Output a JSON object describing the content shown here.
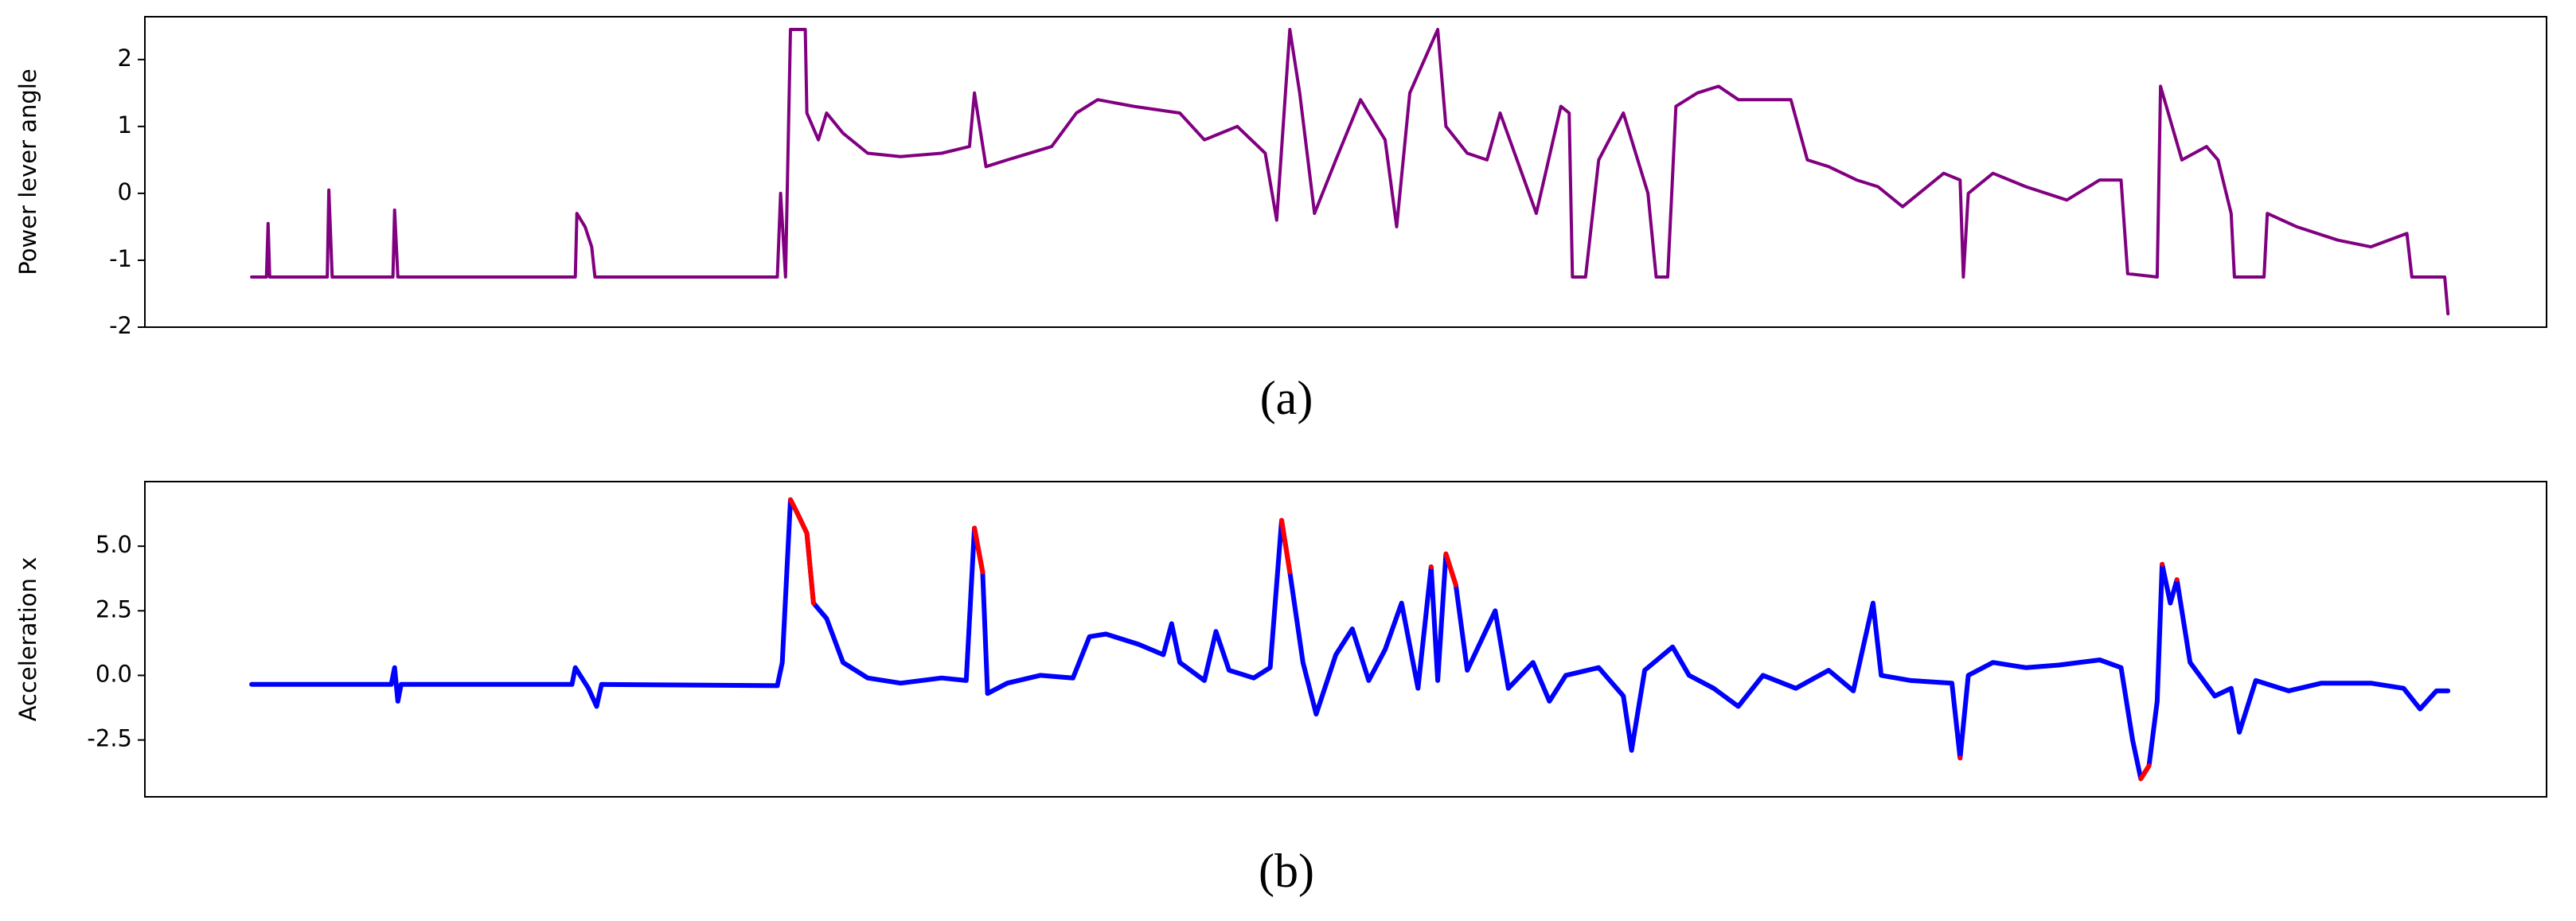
{
  "chart_data": [
    {
      "type": "line",
      "ylabel": "Power lever angle",
      "caption": "(a)",
      "xlim": [
        -65,
        1397
      ],
      "ylim": [
        -2,
        2.64
      ],
      "yticks": [
        -2,
        -1,
        0,
        1,
        2
      ],
      "x": [
        0,
        9,
        10,
        11,
        46,
        47,
        49,
        86,
        87,
        89,
        197,
        198,
        203,
        207,
        209,
        320,
        322,
        325,
        328,
        337,
        338,
        345,
        350,
        360,
        375,
        395,
        420,
        437,
        440,
        447,
        460,
        487,
        502,
        515,
        537,
        565,
        580,
        600,
        617,
        624,
        632,
        638,
        647,
        660,
        675,
        690,
        697,
        705,
        722,
        727,
        740,
        752,
        760,
        782,
        797,
        802,
        804,
        812,
        820,
        835,
        850,
        855,
        862,
        867,
        880,
        893,
        905,
        937,
        947,
        960,
        977,
        990,
        1005,
        1030,
        1040,
        1042,
        1045,
        1060,
        1080,
        1105,
        1125,
        1138,
        1142,
        1160,
        1162,
        1175,
        1190,
        1197,
        1205,
        1207,
        1225,
        1227,
        1245,
        1270,
        1290,
        1312,
        1315,
        1335,
        1337
      ],
      "series": [
        {
          "color": "#800080",
          "values": [
            -1.25,
            -1.25,
            -0.45,
            -1.25,
            -1.25,
            0.05,
            -1.25,
            -1.25,
            -0.25,
            -1.25,
            -1.25,
            -0.3,
            -0.5,
            -0.8,
            -1.25,
            -1.25,
            0,
            -1.25,
            2.45,
            2.45,
            1.2,
            0.8,
            1.2,
            0.9,
            0.6,
            0.55,
            0.6,
            0.7,
            1.5,
            0.4,
            0.5,
            0.7,
            1.2,
            1.4,
            1.3,
            1.2,
            0.8,
            1.0,
            0.6,
            -0.4,
            2.45,
            1.5,
            -0.3,
            0.5,
            1.4,
            0.8,
            -0.5,
            1.5,
            2.45,
            1.0,
            0.6,
            0.5,
            1.2,
            -0.3,
            1.3,
            1.2,
            -1.25,
            -1.25,
            0.5,
            1.2,
            0,
            -1.25,
            -1.25,
            1.3,
            1.5,
            1.6,
            1.4,
            1.4,
            0.5,
            0.4,
            0.2,
            0.1,
            -0.2,
            0.3,
            0.2,
            -1.25,
            0,
            0.3,
            0.1,
            -0.1,
            0.2,
            0.2,
            -1.2,
            -1.25,
            1.6,
            0.5,
            0.7,
            0.5,
            -0.3,
            -1.25,
            -1.25,
            -0.3,
            -0.5,
            -0.7,
            -0.8,
            -0.6,
            -1.25,
            -1.25,
            -1.8
          ]
        }
      ]
    },
    {
      "type": "line",
      "ylabel": "Acceleration x",
      "caption": "(b)",
      "xlim": [
        -65,
        1397
      ],
      "ylim": [
        -4.7,
        7.5
      ],
      "yticks": [
        -2.5,
        {
          "value": 0,
          "label": "0.0"
        },
        2.5,
        {
          "value": 5,
          "label": "5.0"
        }
      ],
      "x": [
        0,
        85,
        87,
        89,
        91,
        195,
        197,
        205,
        210,
        213,
        320,
        323,
        328,
        332,
        338,
        342,
        350,
        360,
        375,
        395,
        420,
        435,
        440,
        445,
        448,
        460,
        480,
        500,
        510,
        520,
        540,
        555,
        560,
        565,
        580,
        587,
        595,
        610,
        620,
        627,
        632,
        640,
        648,
        660,
        670,
        680,
        690,
        700,
        710,
        718,
        722,
        727,
        733,
        740,
        757,
        765,
        780,
        790,
        800,
        820,
        835,
        840,
        848,
        865,
        875,
        890,
        905,
        920,
        940,
        960,
        975,
        987,
        992,
        1010,
        1035,
        1040,
        1045,
        1060,
        1080,
        1100,
        1125,
        1138,
        1145,
        1150,
        1155,
        1160,
        1163,
        1168,
        1172,
        1180,
        1195,
        1205,
        1210,
        1220,
        1240,
        1260,
        1290,
        1310,
        1320,
        1330,
        1337
      ],
      "series": [
        {
          "color": "#0000ff",
          "values": [
            -0.35,
            -0.35,
            0.3,
            -1.0,
            -0.35,
            -0.35,
            0.3,
            -0.5,
            -1.2,
            -0.35,
            -0.4,
            0.5,
            6.8,
            6.3,
            5.5,
            2.8,
            2.2,
            0.5,
            -0.1,
            -0.3,
            -0.1,
            -0.2,
            5.7,
            4.0,
            -0.7,
            -0.3,
            0,
            -0.1,
            1.5,
            1.6,
            1.2,
            0.8,
            2.0,
            0.5,
            -0.2,
            1.7,
            0.2,
            -0.1,
            0.3,
            6.0,
            4.0,
            0.5,
            -1.5,
            0.8,
            1.8,
            -0.2,
            1.0,
            2.8,
            -0.5,
            4.2,
            -0.2,
            4.7,
            3.5,
            0.2,
            2.5,
            -0.5,
            0.5,
            -1.0,
            0,
            0.3,
            -0.8,
            -2.9,
            0.2,
            1.1,
            0,
            -0.5,
            -1.2,
            0,
            -0.5,
            0.2,
            -0.6,
            2.8,
            0,
            -0.2,
            -0.3,
            -3.2,
            0,
            0.5,
            0.3,
            0.4,
            0.6,
            0.3,
            -2.5,
            -4.0,
            -3.5,
            -1.0,
            4.3,
            2.8,
            3.7,
            0.5,
            -0.8,
            -0.5,
            -2.2,
            -0.2,
            -0.6,
            -0.3,
            -0.3,
            -0.5,
            -1.3,
            -0.6,
            -0.6
          ]
        },
        {
          "color": "#ff0000",
          "values": [
            null,
            null,
            null,
            null,
            null,
            null,
            null,
            null,
            null,
            null,
            null,
            null,
            6.8,
            6.3,
            5.5,
            2.8,
            null,
            null,
            null,
            null,
            null,
            null,
            5.7,
            4.0,
            null,
            null,
            null,
            null,
            null,
            null,
            null,
            null,
            null,
            null,
            null,
            null,
            null,
            null,
            null,
            6.0,
            4.0,
            null,
            null,
            null,
            null,
            null,
            null,
            null,
            null,
            4.2,
            null,
            4.7,
            3.5,
            null,
            null,
            null,
            null,
            null,
            null,
            null,
            null,
            null,
            null,
            null,
            null,
            null,
            null,
            null,
            null,
            null,
            null,
            null,
            null,
            null,
            null,
            -3.2,
            null,
            null,
            null,
            null,
            null,
            null,
            null,
            -4.0,
            -3.5,
            null,
            4.3,
            null,
            3.7,
            null,
            null,
            null,
            null,
            null,
            null,
            null,
            null,
            null,
            null,
            null,
            null
          ]
        }
      ]
    }
  ]
}
